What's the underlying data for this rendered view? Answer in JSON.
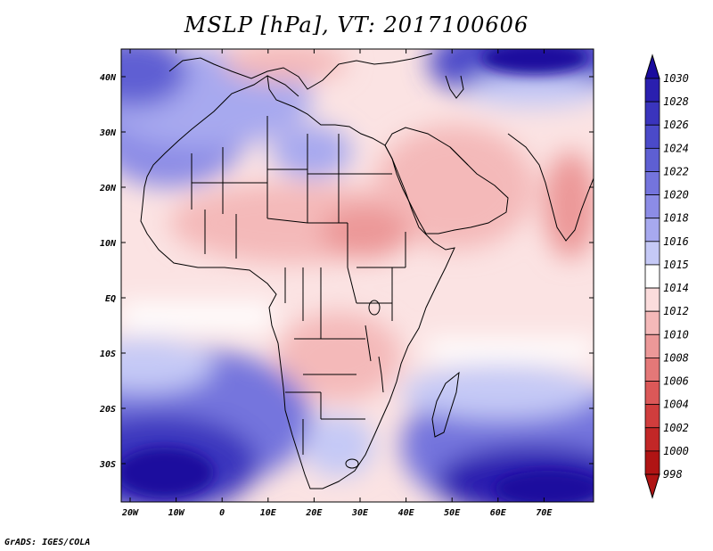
{
  "title": "MSLP [hPa], VT: 2017100606",
  "footer": "GrADS: IGES/COLA",
  "lat_labels": [
    "40N",
    "30N",
    "20N",
    "10N",
    "EQ",
    "10S",
    "20S",
    "30S"
  ],
  "lon_labels": [
    "20W",
    "10W",
    "0",
    "10E",
    "20E",
    "30E",
    "40E",
    "50E",
    "60E",
    "70E"
  ],
  "colorbar": {
    "levels": [
      "1030",
      "1028",
      "1026",
      "1024",
      "1022",
      "1020",
      "1018",
      "1016",
      "1015",
      "1014",
      "1012",
      "1010",
      "1008",
      "1006",
      "1004",
      "1002",
      "1000",
      "998"
    ],
    "colors": [
      "#1a0b9e",
      "#2a1faf",
      "#3a34bd",
      "#4b4ac9",
      "#5e5fd3",
      "#7474dd",
      "#8c8ce6",
      "#a7a9ef",
      "#c5c9f6",
      "#ffffff",
      "#fbdcdc",
      "#f4b9b9",
      "#ec9898",
      "#e47878",
      "#db5858",
      "#d03d3d",
      "#c22727",
      "#b01414"
    ]
  }
}
